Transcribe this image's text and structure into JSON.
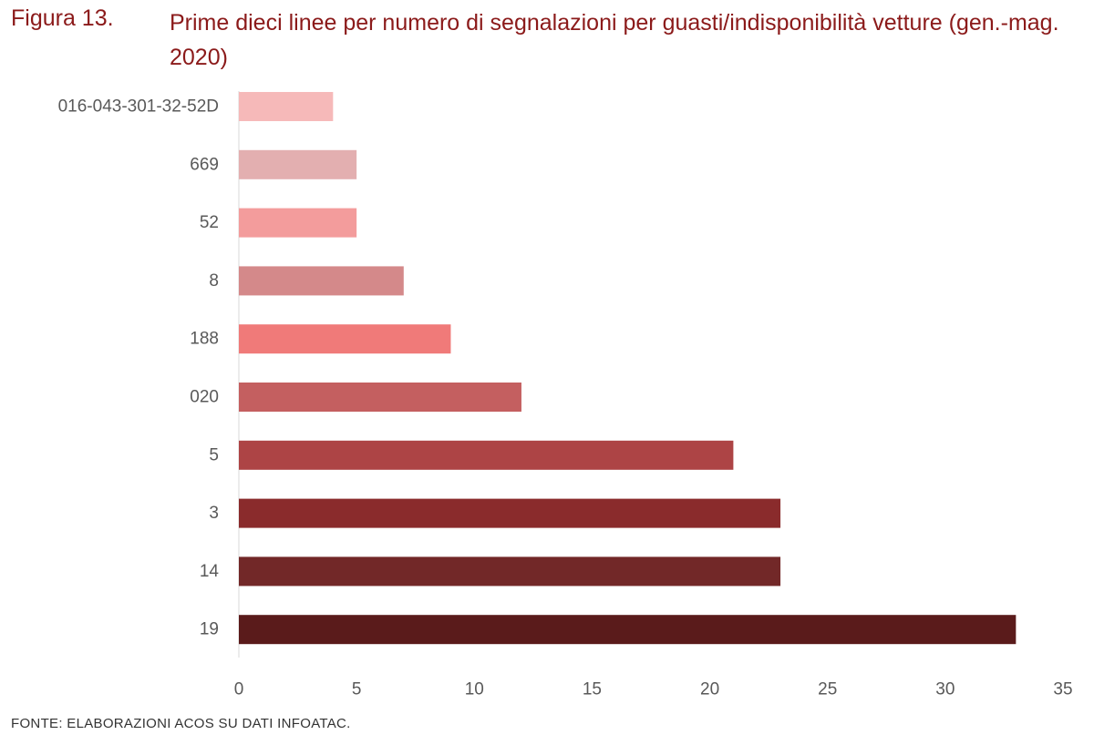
{
  "figure": {
    "label": "Figura 13.",
    "title": "Prime dieci linee per numero di segnalazioni per guasti/indisponibilità vetture (gen.-mag. 2020)",
    "source": "FONTE: ELABORAZIONI ACOS SU DATI INFOATAC."
  },
  "chart_data": {
    "type": "bar",
    "orientation": "horizontal",
    "title": "Prime dieci linee per numero di segnalazioni per guasti/indisponibilità vetture (gen.-mag. 2020)",
    "xlabel": "",
    "ylabel": "",
    "xlim": [
      0,
      35
    ],
    "xticks": [
      0,
      5,
      10,
      15,
      20,
      25,
      30,
      35
    ],
    "grid": false,
    "legend": "none",
    "categories": [
      "016-043-301-32-52D",
      "669",
      "52",
      "8",
      "188",
      "020",
      "5",
      "3",
      "14",
      "19"
    ],
    "values": [
      4,
      5,
      5,
      7,
      9,
      12,
      21,
      23,
      23,
      33
    ],
    "colors": [
      "#f6b9b9",
      "#e3afb0",
      "#f39c9c",
      "#d4898a",
      "#f07a79",
      "#c45f60",
      "#ad4445",
      "#8a2b2c",
      "#722828",
      "#5a1b1b"
    ]
  }
}
